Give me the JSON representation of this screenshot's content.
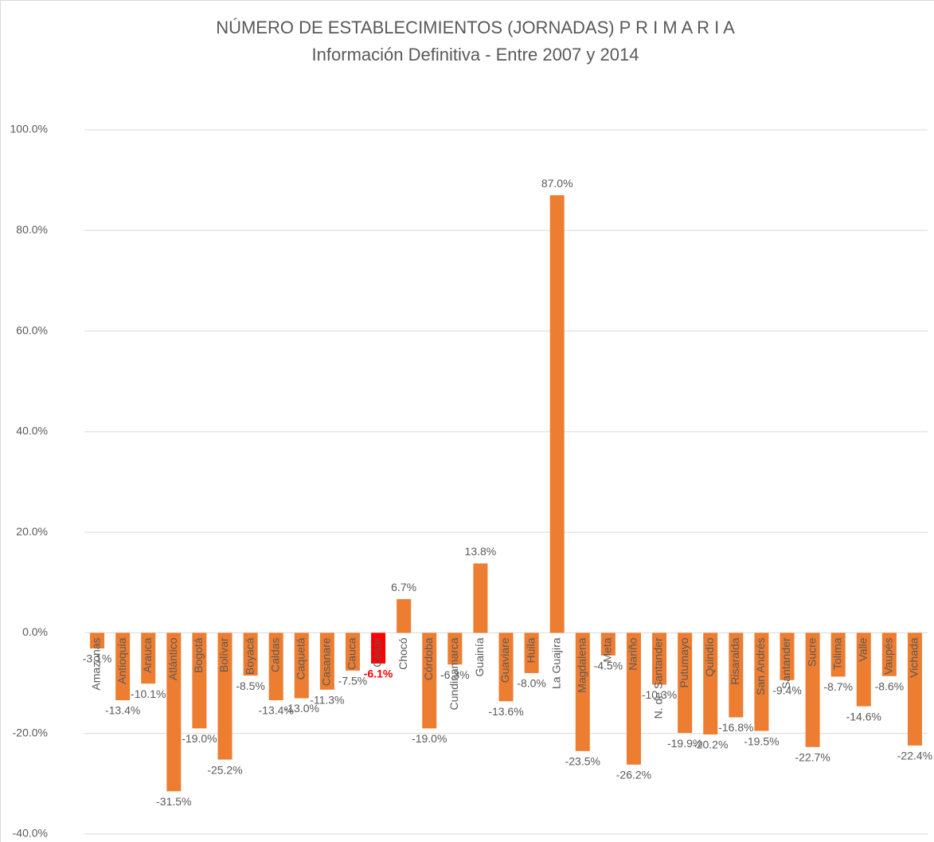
{
  "chart_data": {
    "type": "bar",
    "title": "NÚMERO DE ESTABLECIMIENTOS (JORNADAS) P R I M A R I A",
    "subtitle": "Información Definitiva - Entre 2007 y 2014",
    "categories": [
      "Amazonas",
      "Antioquia",
      "Arauca",
      "Atlántico",
      "Bogotá",
      "Bolívar",
      "Boyacá",
      "Caldas",
      "Caquetá",
      "Casanare",
      "Cauca",
      "Cesar",
      "Chocó",
      "Córdoba",
      "Cundinamarca",
      "Guainía",
      "Guaviare",
      "Huila",
      "La Guajira",
      "Magdalena",
      "Meta",
      "Nariño",
      "N. de Santander",
      "Putumayo",
      "Quindío",
      "Risaralda",
      "San Andrés",
      "Santander",
      "Sucre",
      "Tolima",
      "Valle",
      "Vaupés",
      "Vichada"
    ],
    "values": [
      -3.1,
      -13.4,
      -10.1,
      -31.5,
      -19.0,
      -25.2,
      -8.5,
      -13.4,
      -13.0,
      -11.3,
      -7.5,
      -6.1,
      6.7,
      -19.0,
      -6.3,
      13.8,
      -13.6,
      -8.0,
      87.0,
      -23.5,
      -4.5,
      -26.2,
      -10.3,
      -19.9,
      -20.2,
      -16.8,
      -19.5,
      -9.4,
      -22.7,
      -8.7,
      -14.6,
      -8.6,
      -22.4
    ],
    "value_labels": [
      "-3.1%",
      "-13.4%",
      "-10.1%",
      "-31.5%",
      "-19.0%",
      "-25.2%",
      "-8.5%",
      "-13.4%",
      "-13.0%",
      "-11.3%",
      "-7.5%",
      "-6.1%",
      "6.7%",
      "-19.0%",
      "-6.3%",
      "13.8%",
      "-13.6%",
      "-8.0%",
      "87.0%",
      "-23.5%",
      "-4.5%",
      "-26.2%",
      "-10.3%",
      "-19.9%",
      "-20.2%",
      "-16.8%",
      "-19.5%",
      "-9.4%",
      "-22.7%",
      "-8.7%",
      "-14.6%",
      "-8.6%",
      "-22.4%"
    ],
    "colors": [
      "#ED7D31",
      "#ED7D31",
      "#ED7D31",
      "#ED7D31",
      "#ED7D31",
      "#ED7D31",
      "#ED7D31",
      "#ED7D31",
      "#ED7D31",
      "#ED7D31",
      "#ED7D31",
      "#FF0000",
      "#ED7D31",
      "#ED7D31",
      "#ED7D31",
      "#ED7D31",
      "#ED7D31",
      "#ED7D31",
      "#ED7D31",
      "#ED7D31",
      "#ED7D31",
      "#ED7D31",
      "#ED7D31",
      "#ED7D31",
      "#ED7D31",
      "#ED7D31",
      "#ED7D31",
      "#ED7D31",
      "#ED7D31",
      "#ED7D31",
      "#ED7D31",
      "#ED7D31",
      "#ED7D31"
    ],
    "ylim": [
      -40,
      100
    ],
    "yticks": [
      {
        "value": -40,
        "label": "-40.0%"
      },
      {
        "value": -20,
        "label": "-20.0%"
      },
      {
        "value": 0,
        "label": "0.0%"
      },
      {
        "value": 20,
        "label": "20.0%"
      },
      {
        "value": 40,
        "label": "40.0%"
      },
      {
        "value": 60,
        "label": "60.0%"
      },
      {
        "value": 80,
        "label": "80.0%"
      },
      {
        "value": 100,
        "label": "100.0%"
      }
    ],
    "grid": true
  }
}
